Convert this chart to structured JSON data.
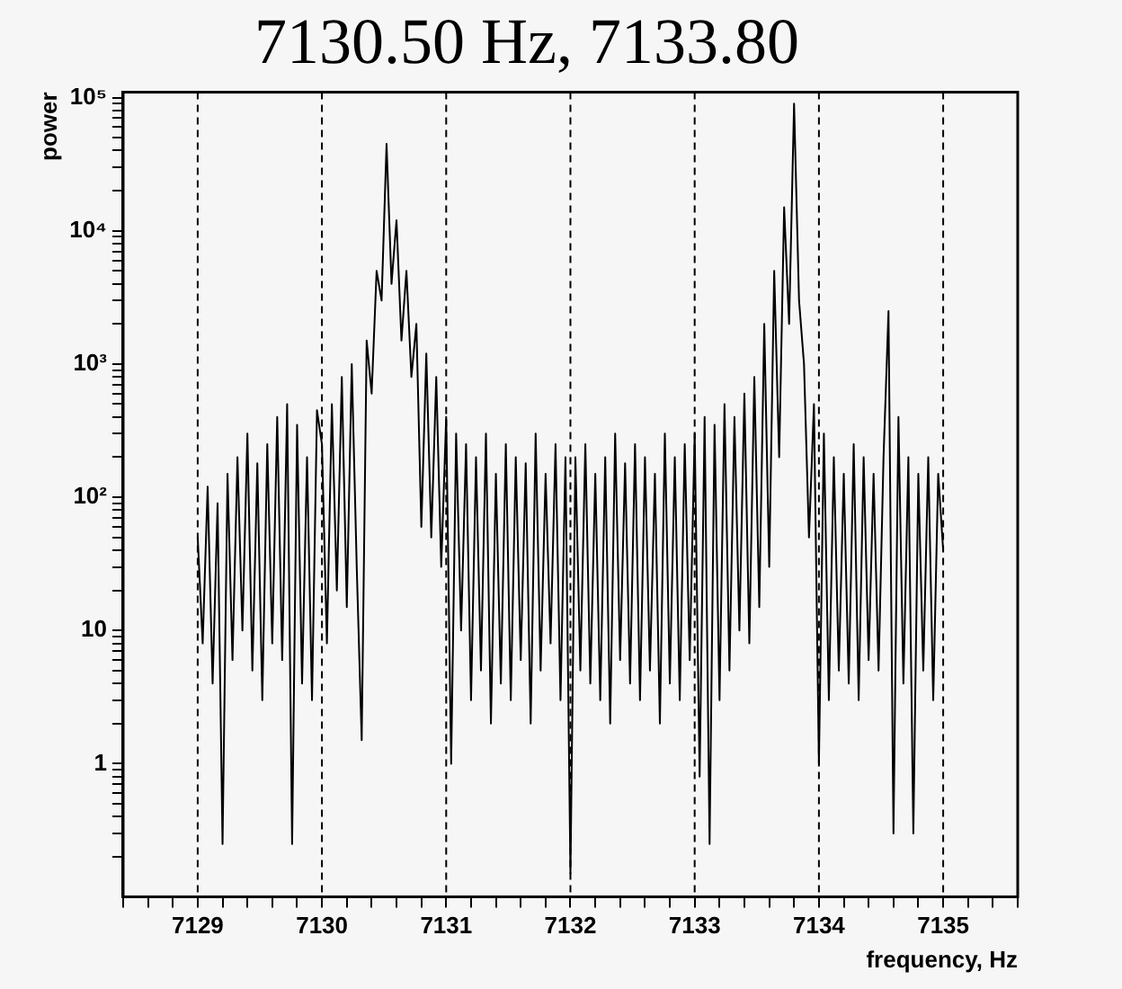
{
  "chart_data": {
    "type": "line",
    "title": "7130.50 Hz, 7133.80",
    "xlabel": "frequency, Hz",
    "ylabel": "power",
    "log": "y",
    "color": "#000000",
    "x": [
      7129,
      7129.04,
      7129.08,
      7129.12,
      7129.16,
      7129.2,
      7129.24,
      7129.28,
      7129.32,
      7129.36,
      7129.4,
      7129.44,
      7129.48,
      7129.52,
      7129.56,
      7129.6,
      7129.64,
      7129.68,
      7129.72,
      7129.76,
      7129.8,
      7129.84,
      7129.88,
      7129.92,
      7129.96,
      7130,
      7130.04,
      7130.08,
      7130.12,
      7130.16,
      7130.2,
      7130.24,
      7130.28,
      7130.32,
      7130.36,
      7130.4,
      7130.44,
      7130.48,
      7130.52,
      7130.56,
      7130.6,
      7130.64,
      7130.68,
      7130.72,
      7130.76,
      7130.8,
      7130.84,
      7130.88,
      7130.92,
      7130.96,
      7131,
      7131.04,
      7131.08,
      7131.12,
      7131.16,
      7131.2,
      7131.24,
      7131.28,
      7131.32,
      7131.36,
      7131.4,
      7131.44,
      7131.48,
      7131.52,
      7131.56,
      7131.6,
      7131.64,
      7131.68,
      7131.72,
      7131.76,
      7131.8,
      7131.84,
      7131.88,
      7131.92,
      7131.96,
      7132,
      7132.04,
      7132.08,
      7132.12,
      7132.16,
      7132.2,
      7132.24,
      7132.28,
      7132.32,
      7132.36,
      7132.4,
      7132.44,
      7132.48,
      7132.52,
      7132.56,
      7132.6,
      7132.64,
      7132.68,
      7132.72,
      7132.76,
      7132.8,
      7132.84,
      7132.88,
      7132.92,
      7132.96,
      7133,
      7133.04,
      7133.08,
      7133.12,
      7133.16,
      7133.2,
      7133.24,
      7133.28,
      7133.32,
      7133.36,
      7133.4,
      7133.44,
      7133.48,
      7133.52,
      7133.56,
      7133.6,
      7133.64,
      7133.68,
      7133.72,
      7133.76,
      7133.8,
      7133.84,
      7133.88,
      7133.92,
      7133.96,
      7134,
      7134.04,
      7134.08,
      7134.12,
      7134.16,
      7134.2,
      7134.24,
      7134.28,
      7134.32,
      7134.36,
      7134.4,
      7134.44,
      7134.48,
      7134.52,
      7134.56,
      7134.6,
      7134.64,
      7134.68,
      7134.72,
      7134.76,
      7134.8,
      7134.84,
      7134.88,
      7134.92,
      7134.96,
      7135
    ],
    "values": [
      50,
      8,
      120,
      4,
      90,
      0.25,
      150,
      6,
      200,
      10,
      300,
      5,
      180,
      3,
      250,
      8,
      400,
      6,
      500,
      0.25,
      350,
      4,
      200,
      3,
      450,
      250,
      8,
      500,
      20,
      800,
      15,
      1000,
      30,
      1.5,
      1500,
      600,
      5000,
      3000,
      45000,
      4000,
      12000,
      1500,
      5000,
      800,
      2000,
      60,
      1200,
      50,
      800,
      30,
      400,
      1,
      300,
      10,
      250,
      3,
      200,
      5,
      300,
      2,
      150,
      4,
      250,
      3,
      200,
      6,
      180,
      2,
      300,
      5,
      150,
      8,
      250,
      3,
      200,
      0.15,
      200,
      5,
      250,
      4,
      150,
      3,
      200,
      2,
      300,
      6,
      180,
      4,
      250,
      3,
      200,
      5,
      150,
      2,
      300,
      4,
      200,
      3,
      250,
      6,
      300,
      0.8,
      400,
      0.25,
      350,
      3,
      500,
      5,
      400,
      10,
      600,
      8,
      800,
      15,
      2000,
      30,
      5000,
      200,
      15000,
      2000,
      90000,
      3000,
      1000,
      50,
      500,
      1,
      300,
      3,
      200,
      5,
      150,
      4,
      250,
      3,
      200,
      6,
      150,
      5,
      200,
      2500,
      0.3,
      400,
      4,
      200,
      0.3,
      150,
      5,
      200,
      3,
      150,
      40
    ],
    "xlim": [
      7128.4,
      7135.6
    ],
    "xticks": [
      {
        "value": 7128.4,
        "label": null
      },
      {
        "value": 7128.6,
        "label": null
      },
      {
        "value": 7128.8,
        "label": null
      },
      7129,
      {
        "value": 7129.2,
        "label": null
      },
      {
        "value": 7129.4,
        "label": null
      },
      {
        "value": 7129.6,
        "label": null
      },
      {
        "value": 7129.8,
        "label": null
      },
      7130,
      {
        "value": 7130.2,
        "label": null
      },
      {
        "value": 7130.4,
        "label": null
      },
      {
        "value": 7130.6,
        "label": null
      },
      {
        "value": 7130.8,
        "label": null
      },
      7131,
      {
        "value": 7131.2,
        "label": null
      },
      {
        "value": 7131.4,
        "label": null
      },
      {
        "value": 7131.6,
        "label": null
      },
      {
        "value": 7131.8,
        "label": null
      },
      7132,
      {
        "value": 7132.2,
        "label": null
      },
      {
        "value": 7132.4,
        "label": null
      },
      {
        "value": 7132.6,
        "label": null
      },
      {
        "value": 7132.8,
        "label": null
      },
      7133,
      {
        "value": 7133.2,
        "label": null
      },
      {
        "value": 7133.4,
        "label": null
      },
      {
        "value": 7133.6,
        "label": null
      },
      {
        "value": 7133.8,
        "label": null
      },
      7134,
      {
        "value": 7134.2,
        "label": null
      },
      {
        "value": 7134.4,
        "label": null
      },
      {
        "value": 7134.6,
        "label": null
      },
      {
        "value": 7134.8,
        "label": null
      },
      7135,
      {
        "value": 7135.2,
        "label": null
      },
      {
        "value": 7135.4,
        "label": null
      },
      {
        "value": 7135.6,
        "label": null
      }
    ],
    "ylim": [
      0.1,
      110000
    ],
    "yticks": [
      {
        "value": 0.2,
        "label": null
      },
      {
        "value": 0.3,
        "label": null
      },
      {
        "value": 0.4,
        "label": null
      },
      {
        "value": 0.5,
        "label": null
      },
      {
        "value": 0.6,
        "label": null
      },
      {
        "value": 0.7,
        "label": null
      },
      {
        "value": 0.8,
        "label": null
      },
      {
        "value": 0.9,
        "label": null
      },
      1,
      {
        "value": 2,
        "label": null
      },
      {
        "value": 3,
        "label": null
      },
      {
        "value": 4,
        "label": null
      },
      {
        "value": 5,
        "label": null
      },
      {
        "value": 6,
        "label": null
      },
      {
        "value": 7,
        "label": null
      },
      {
        "value": 8,
        "label": null
      },
      {
        "value": 9,
        "label": null
      },
      10,
      {
        "value": 20,
        "label": null
      },
      {
        "value": 30,
        "label": null
      },
      {
        "value": 40,
        "label": null
      },
      {
        "value": 50,
        "label": null
      },
      {
        "value": 60,
        "label": null
      },
      {
        "value": 70,
        "label": null
      },
      {
        "value": 80,
        "label": null
      },
      {
        "value": 90,
        "label": null
      },
      {
        "value": 100,
        "label": "10²"
      },
      {
        "value": 200,
        "label": null
      },
      {
        "value": 300,
        "label": null
      },
      {
        "value": 400,
        "label": null
      },
      {
        "value": 500,
        "label": null
      },
      {
        "value": 600,
        "label": null
      },
      {
        "value": 700,
        "label": null
      },
      {
        "value": 800,
        "label": null
      },
      {
        "value": 900,
        "label": null
      },
      {
        "value": 1000,
        "label": "10³"
      },
      {
        "value": 2000,
        "label": null
      },
      {
        "value": 3000,
        "label": null
      },
      {
        "value": 4000,
        "label": null
      },
      {
        "value": 5000,
        "label": null
      },
      {
        "value": 6000,
        "label": null
      },
      {
        "value": 7000,
        "label": null
      },
      {
        "value": 8000,
        "label": null
      },
      {
        "value": 9000,
        "label": null
      },
      {
        "value": 10000,
        "label": "10⁴"
      },
      {
        "value": 20000,
        "label": null
      },
      {
        "value": 30000,
        "label": null
      },
      {
        "value": 40000,
        "label": null
      },
      {
        "value": 50000,
        "label": null
      },
      {
        "value": 60000,
        "label": null
      },
      {
        "value": 70000,
        "label": null
      },
      {
        "value": 80000,
        "label": null
      },
      {
        "value": 90000,
        "label": null
      },
      {
        "value": 100000,
        "label": "10⁵"
      }
    ],
    "ref_lines": [
      {
        "axis": "x",
        "value": 7129,
        "line_style": "dashed"
      },
      {
        "axis": "x",
        "value": 7130,
        "line_style": "dashed"
      },
      {
        "axis": "x",
        "value": 7131,
        "line_style": "dashed"
      },
      {
        "axis": "x",
        "value": 7132,
        "line_style": "dashed"
      },
      {
        "axis": "x",
        "value": 7133,
        "line_style": "dashed"
      },
      {
        "axis": "x",
        "value": 7134,
        "line_style": "dashed"
      },
      {
        "axis": "x",
        "value": 7135,
        "line_style": "dashed"
      }
    ]
  }
}
